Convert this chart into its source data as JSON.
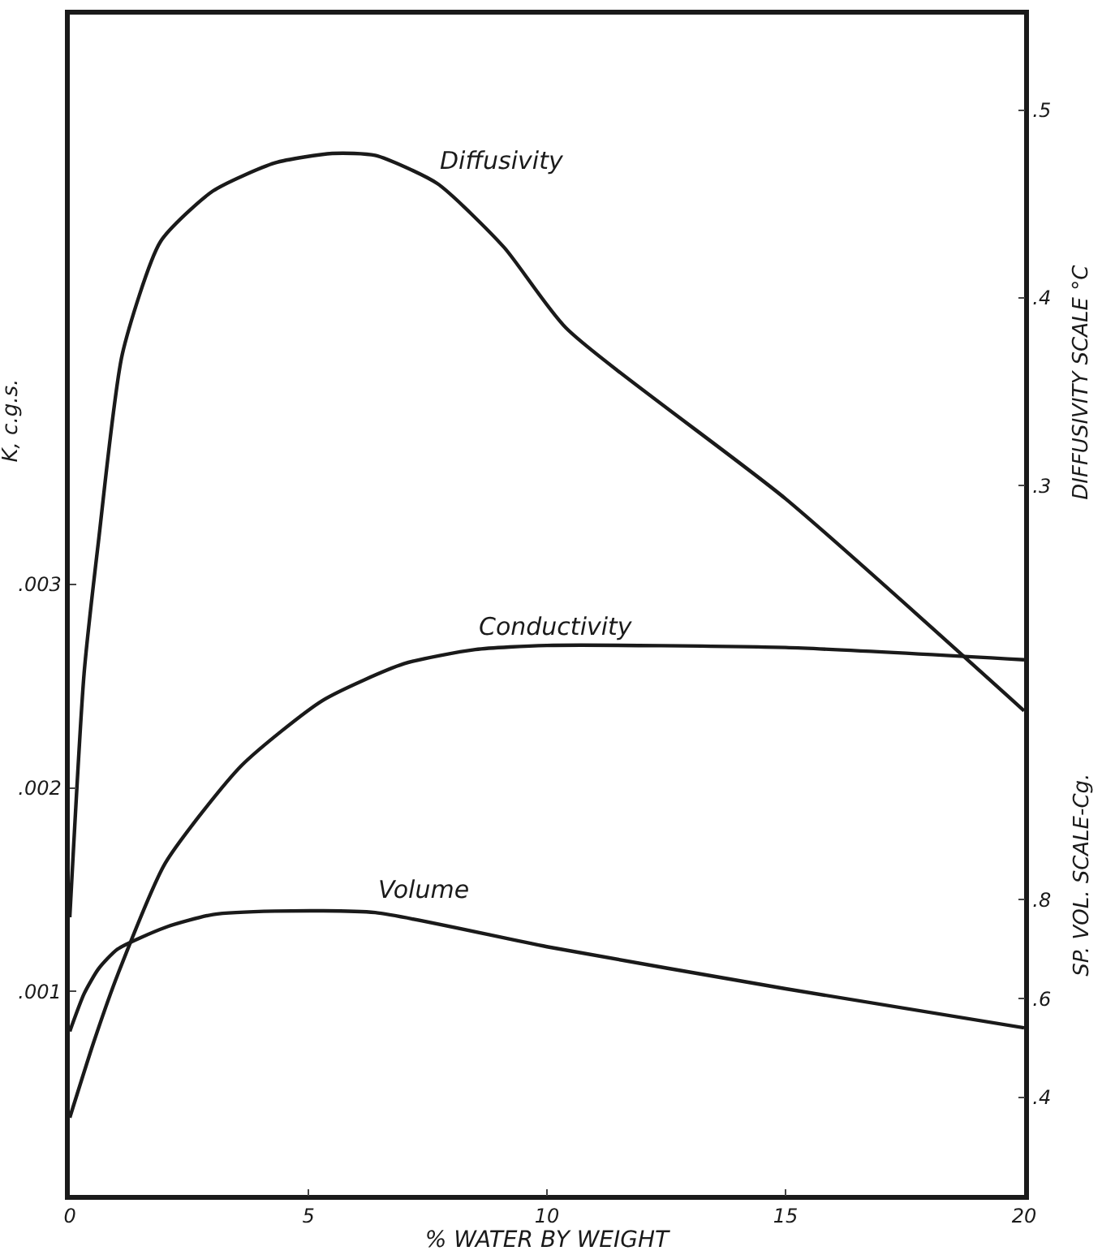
{
  "chart_data": {
    "type": "line",
    "xlabel": "% WATER BY WEIGHT",
    "ylabel": "K, c.g.s.",
    "y2label": "DIFFUSIVITY SCALE °C",
    "y3label": "SP. VOL. SCALE-Cg.",
    "xlim": [
      0,
      20
    ],
    "xticks": [
      0,
      5,
      10,
      15,
      20
    ],
    "ylim": [
      0,
      0.0058
    ],
    "yticks": [
      {
        "value": 0.001,
        "label": ".001"
      },
      {
        "value": 0.002,
        "label": ".002"
      },
      {
        "value": 0.003,
        "label": ".003"
      }
    ],
    "y2lim": [
      -0.078,
      0.551
    ],
    "y2ticks": [
      {
        "value": 0.3,
        "label": ".3"
      },
      {
        "value": 0.4,
        "label": ".4"
      },
      {
        "value": 0.5,
        "label": ".5"
      }
    ],
    "y3lim": [
      0.203,
      2.59
    ],
    "y3ticks": [
      {
        "value": 0.4,
        "label": ".4"
      },
      {
        "value": 0.6,
        "label": ".6"
      },
      {
        "value": 0.8,
        "label": ".8"
      }
    ],
    "legend": false,
    "marker": "none",
    "line_style": "solid",
    "series": [
      {
        "name": "Diffusivity",
        "color": "#1a1a1a",
        "axis": "y2",
        "x": [
          0,
          0.3,
          0.6,
          1.1,
          1.9,
          3,
          4.3,
          5.5,
          6.4,
          7.7,
          9.1,
          10.4,
          15,
          20
        ],
        "values": [
          0.07,
          0.2,
          0.27,
          0.37,
          0.43,
          0.457,
          0.472,
          0.477,
          0.476,
          0.461,
          0.427,
          0.384,
          0.293,
          0.18
        ]
      },
      {
        "name": "Conductivity",
        "color": "#1a1a1a",
        "x": [
          0,
          0.5,
          1,
          2,
          3.6,
          5.3,
          7,
          8.5,
          10,
          15,
          20
        ],
        "values": [
          0.00038,
          0.00075,
          0.00108,
          0.00163,
          0.00211,
          0.00243,
          0.00261,
          0.00268,
          0.0027,
          0.00269,
          0.00263
        ]
      },
      {
        "name": "Volume",
        "color": "#1a1a1a",
        "axis": "y3",
        "x": [
          0,
          0.3,
          0.6,
          1,
          2,
          3,
          4.3,
          6.4,
          10,
          15,
          20
        ],
        "values": [
          0.534,
          0.61,
          0.66,
          0.7,
          0.744,
          0.77,
          0.777,
          0.774,
          0.705,
          0.62,
          0.541
        ]
      }
    ]
  }
}
